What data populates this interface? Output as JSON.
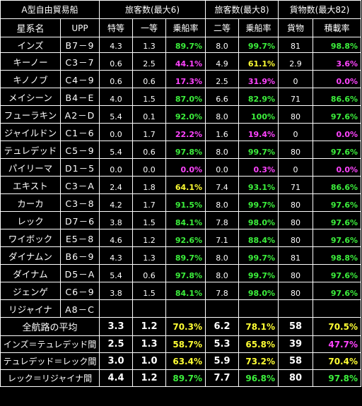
{
  "header": {
    "title": "A型自由貿易船",
    "group_passengers6": "旅客数(最大6)",
    "group_passengers8": "旅客数(最大8)",
    "group_cargo": "貨物数(最大82)",
    "col_system": "星系名",
    "col_upp": "UPP",
    "col_high": "特等",
    "col_first": "一等",
    "col_rate1": "乗船率",
    "col_second": "二等",
    "col_rate2": "乗船率",
    "col_cargo": "貨物",
    "col_load": "積載率"
  },
  "rows": [
    {
      "name": "インズ",
      "upp": "B7－9",
      "high": "4.3",
      "first": "1.3",
      "rate1": "89.7%",
      "rate1_color": "green",
      "second": "8.0",
      "rate2": "99.7%",
      "rate2_color": "green",
      "cargo": "81",
      "load": "98.8%",
      "load_color": "green"
    },
    {
      "name": "キーノー",
      "upp": "C3－7",
      "high": "0.6",
      "first": "2.5",
      "rate1": "44.1%",
      "rate1_color": "magenta",
      "second": "4.9",
      "rate2": "61.1%",
      "rate2_color": "yellow",
      "cargo": "2.9",
      "load": "3.6%",
      "load_color": "magenta"
    },
    {
      "name": "キノノブ",
      "upp": "C4－9",
      "high": "0.6",
      "first": "0.6",
      "rate1": "17.3%",
      "rate1_color": "magenta",
      "second": "2.5",
      "rate2": "31.9%",
      "rate2_color": "magenta",
      "cargo": "0",
      "load": "0.0%",
      "load_color": "magenta"
    },
    {
      "name": "メイシーン",
      "upp": "B4－E",
      "high": "4.0",
      "first": "1.5",
      "rate1": "87.0%",
      "rate1_color": "green",
      "second": "6.6",
      "rate2": "82.9%",
      "rate2_color": "green",
      "cargo": "71",
      "load": "86.6%",
      "load_color": "green"
    },
    {
      "name": "フューラキン",
      "upp": "A2－D",
      "high": "5.4",
      "first": "0.1",
      "rate1": "92.0%",
      "rate1_color": "green",
      "second": "8.0",
      "rate2": "100%",
      "rate2_color": "green",
      "cargo": "80",
      "load": "97.6%",
      "load_color": "green"
    },
    {
      "name": "ジャイルドン",
      "upp": "C1－6",
      "high": "0.0",
      "first": "1.7",
      "rate1": "22.2%",
      "rate1_color": "magenta",
      "second": "1.6",
      "rate2": "19.4%",
      "rate2_color": "magenta",
      "cargo": "0",
      "load": "0.0%",
      "load_color": "magenta"
    },
    {
      "name": "テュレデッド",
      "upp": "C5－9",
      "high": "5.4",
      "first": "0.6",
      "rate1": "97.8%",
      "rate1_color": "green",
      "second": "8.0",
      "rate2": "99.7%",
      "rate2_color": "green",
      "cargo": "80",
      "load": "97.6%",
      "load_color": "green"
    },
    {
      "name": "パイリーマ",
      "upp": "D1－5",
      "high": "0.0",
      "first": "0.0",
      "rate1": "0.0%",
      "rate1_color": "magenta",
      "second": "0.0",
      "rate2": "0.3%",
      "rate2_color": "magenta",
      "cargo": "0",
      "load": "0.0%",
      "load_color": "magenta"
    },
    {
      "name": "エキスト",
      "upp": "C3－A",
      "high": "2.4",
      "first": "1.8",
      "rate1": "64.1%",
      "rate1_color": "yellow",
      "second": "7.4",
      "rate2": "93.1%",
      "rate2_color": "green",
      "cargo": "71",
      "load": "86.6%",
      "load_color": "green"
    },
    {
      "name": "カーカ",
      "upp": "C3－8",
      "high": "4.2",
      "first": "1.7",
      "rate1": "91.5%",
      "rate1_color": "green",
      "second": "8.0",
      "rate2": "99.7%",
      "rate2_color": "green",
      "cargo": "80",
      "load": "97.6%",
      "load_color": "green"
    },
    {
      "name": "レック",
      "upp": "D7－6",
      "high": "3.8",
      "first": "1.5",
      "rate1": "84.1%",
      "rate1_color": "green",
      "second": "7.8",
      "rate2": "98.0%",
      "rate2_color": "green",
      "cargo": "80",
      "load": "97.6%",
      "load_color": "green"
    },
    {
      "name": "ワイボック",
      "upp": "E5－8",
      "high": "4.6",
      "first": "1.2",
      "rate1": "92.6%",
      "rate1_color": "green",
      "second": "7.1",
      "rate2": "88.4%",
      "rate2_color": "green",
      "cargo": "80",
      "load": "97.6%",
      "load_color": "green"
    },
    {
      "name": "ダイナムン",
      "upp": "B6－9",
      "high": "4.3",
      "first": "1.3",
      "rate1": "89.7%",
      "rate1_color": "green",
      "second": "8.0",
      "rate2": "99.7%",
      "rate2_color": "green",
      "cargo": "81",
      "load": "98.8%",
      "load_color": "green"
    },
    {
      "name": "ダイナム",
      "upp": "D5－A",
      "high": "5.4",
      "first": "0.6",
      "rate1": "97.8%",
      "rate1_color": "green",
      "second": "8.0",
      "rate2": "99.7%",
      "rate2_color": "green",
      "cargo": "80",
      "load": "97.6%",
      "load_color": "green"
    },
    {
      "name": "ジェンゲ",
      "upp": "C6－9",
      "high": "3.8",
      "first": "1.5",
      "rate1": "84.1%",
      "rate1_color": "green",
      "second": "7.8",
      "rate2": "98.0%",
      "rate2_color": "green",
      "cargo": "80",
      "load": "97.6%",
      "load_color": "green"
    },
    {
      "name": "リジャイナ",
      "upp": "A8－C",
      "high": "",
      "first": "",
      "rate1": "",
      "rate1_color": "green",
      "second": "",
      "rate2": "",
      "rate2_color": "green",
      "cargo": "",
      "load": "",
      "load_color": "green"
    }
  ],
  "summary": [
    {
      "label": "全航路の平均",
      "high": "3.3",
      "first": "1.2",
      "rate1": "70.3%",
      "rate1_color": "yellow",
      "second": "6.2",
      "rate2": "78.1%",
      "rate2_color": "yellow",
      "cargo": "58",
      "load": "70.5%",
      "load_color": "yellow"
    },
    {
      "label": "インズ＝テュレデッド間",
      "high": "2.5",
      "first": "1.3",
      "rate1": "58.7%",
      "rate1_color": "yellow",
      "second": "5.3",
      "rate2": "65.8%",
      "rate2_color": "yellow",
      "cargo": "39",
      "load": "47.7%",
      "load_color": "magenta"
    },
    {
      "label": "テュレデッド＝レック間",
      "high": "3.0",
      "first": "1.0",
      "rate1": "63.4%",
      "rate1_color": "yellow",
      "second": "5.9",
      "rate2": "73.2%",
      "rate2_color": "yellow",
      "cargo": "58",
      "load": "70.4%",
      "load_color": "yellow"
    },
    {
      "label": "レック＝リジャイナ間",
      "high": "4.4",
      "first": "1.2",
      "rate1": "89.7%",
      "rate1_color": "green",
      "second": "7.7",
      "rate2": "96.8%",
      "rate2_color": "green",
      "cargo": "80",
      "load": "97.8%",
      "load_color": "green"
    }
  ]
}
